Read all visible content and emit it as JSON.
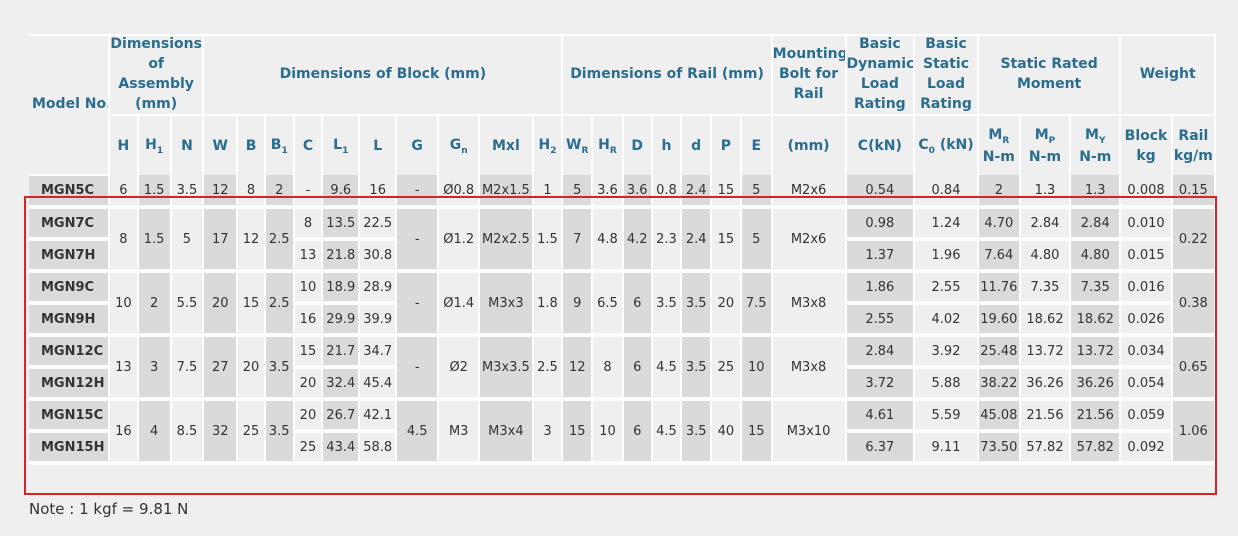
{
  "header": {
    "model_no": "Model No.",
    "dims_assembly": "Dimensions of Assembly (mm)",
    "dims_block": "Dimensions of Block (mm)",
    "dims_rail": "Dimensions of Rail (mm)",
    "mounting_bolt": "Mounting Bolt for Rail",
    "basic_dynamic": "Basic Dynamic Load Rating",
    "basic_static": "Basic Static Load Rating",
    "static_moment": "Static Rated Moment",
    "weight": "Weight",
    "block": "Block",
    "rail": "Rail",
    "nm": "N-m",
    "kg": "kg",
    "kgm": "kg/m",
    "mm": "(mm)",
    "ckn": "C(kN)",
    "c0kn": "(kN)"
  },
  "rows": [
    {
      "model": "MGN5C",
      "H": "6",
      "H1": "1.5",
      "N": "3.5",
      "W": "12",
      "B": "8",
      "B1": "2",
      "C": "-",
      "L1": "9.6",
      "L": "16",
      "G": "-",
      "Gn": "Ø0.8",
      "Mxl": "M2x1.5",
      "H2": "1",
      "WR": "5",
      "HR": "3.6",
      "D": "3.6",
      "h": "0.8",
      "d": "2.4",
      "P": "15",
      "E": "5",
      "bolt": "M2x6",
      "C_kN": "0.54",
      "C0_kN": "0.84",
      "MR": "2",
      "MP": "1.3",
      "MY": "1.3",
      "block_kg": "0.008",
      "rail_kgm": "0.15"
    },
    {
      "model": "MGN7C",
      "H": "8",
      "H1": "1.5",
      "N": "5",
      "W": "17",
      "B": "12",
      "B1": "2.5",
      "C": "8",
      "L1": "13.5",
      "L": "22.5",
      "G": "-",
      "Gn": "Ø1.2",
      "Mxl": "M2x2.5",
      "H2": "1.5",
      "WR": "7",
      "HR": "4.8",
      "D": "4.2",
      "h": "2.3",
      "d": "2.4",
      "P": "15",
      "E": "5",
      "bolt": "M2x6",
      "C_kN": "0.98",
      "C0_kN": "1.24",
      "MR": "4.70",
      "MP": "2.84",
      "MY": "2.84",
      "block_kg": "0.010",
      "rail_kgm": "0.22"
    },
    {
      "model": "MGN7H",
      "C": "13",
      "L1": "21.8",
      "L": "30.8",
      "C_kN": "1.37",
      "C0_kN": "1.96",
      "MR": "7.64",
      "MP": "4.80",
      "MY": "4.80",
      "block_kg": "0.015"
    },
    {
      "model": "MGN9C",
      "H": "10",
      "H1": "2",
      "N": "5.5",
      "W": "20",
      "B": "15",
      "B1": "2.5",
      "C": "10",
      "L1": "18.9",
      "L": "28.9",
      "G": "-",
      "Gn": "Ø1.4",
      "Mxl": "M3x3",
      "H2": "1.8",
      "WR": "9",
      "HR": "6.5",
      "D": "6",
      "h": "3.5",
      "d": "3.5",
      "P": "20",
      "E": "7.5",
      "bolt": "M3x8",
      "C_kN": "1.86",
      "C0_kN": "2.55",
      "MR": "11.76",
      "MP": "7.35",
      "MY": "7.35",
      "block_kg": "0.016",
      "rail_kgm": "0.38"
    },
    {
      "model": "MGN9H",
      "C": "16",
      "L1": "29.9",
      "L": "39.9",
      "C_kN": "2.55",
      "C0_kN": "4.02",
      "MR": "19.60",
      "MP": "18.62",
      "MY": "18.62",
      "block_kg": "0.026"
    },
    {
      "model": "MGN12C",
      "H": "13",
      "H1": "3",
      "N": "7.5",
      "W": "27",
      "B": "20",
      "B1": "3.5",
      "C": "15",
      "L1": "21.7",
      "L": "34.7",
      "G": "-",
      "Gn": "Ø2",
      "Mxl": "M3x3.5",
      "H2": "2.5",
      "WR": "12",
      "HR": "8",
      "D": "6",
      "h": "4.5",
      "d": "3.5",
      "P": "25",
      "E": "10",
      "bolt": "M3x8",
      "C_kN": "2.84",
      "C0_kN": "3.92",
      "MR": "25.48",
      "MP": "13.72",
      "MY": "13.72",
      "block_kg": "0.034",
      "rail_kgm": "0.65"
    },
    {
      "model": "MGN12H",
      "C": "20",
      "L1": "32.4",
      "L": "45.4",
      "C_kN": "3.72",
      "C0_kN": "5.88",
      "MR": "38.22",
      "MP": "36.26",
      "MY": "36.26",
      "block_kg": "0.054"
    },
    {
      "model": "MGN15C",
      "H": "16",
      "H1": "4",
      "N": "8.5",
      "W": "32",
      "B": "25",
      "B1": "3.5",
      "C": "20",
      "L1": "26.7",
      "L": "42.1",
      "G": "4.5",
      "Gn": "M3",
      "Mxl": "M3x4",
      "H2": "3",
      "WR": "15",
      "HR": "10",
      "D": "6",
      "h": "4.5",
      "d": "3.5",
      "P": "40",
      "E": "15",
      "bolt": "M3x10",
      "C_kN": "4.61",
      "C0_kN": "5.59",
      "MR": "45.08",
      "MP": "21.56",
      "MY": "21.56",
      "block_kg": "0.059",
      "rail_kgm": "1.06"
    },
    {
      "model": "MGN15H",
      "C": "25",
      "L1": "43.4",
      "L": "58.8",
      "C_kN": "6.37",
      "C0_kN": "9.11",
      "MR": "73.50",
      "MP": "57.82",
      "MY": "57.82",
      "block_kg": "0.092"
    }
  ],
  "note": "Note : 1 kgf = 9.81 N",
  "colors": {
    "header_text": "#2a6d8f",
    "highlight": "#d42424",
    "shade": "#dadada",
    "background": "#efefef"
  }
}
